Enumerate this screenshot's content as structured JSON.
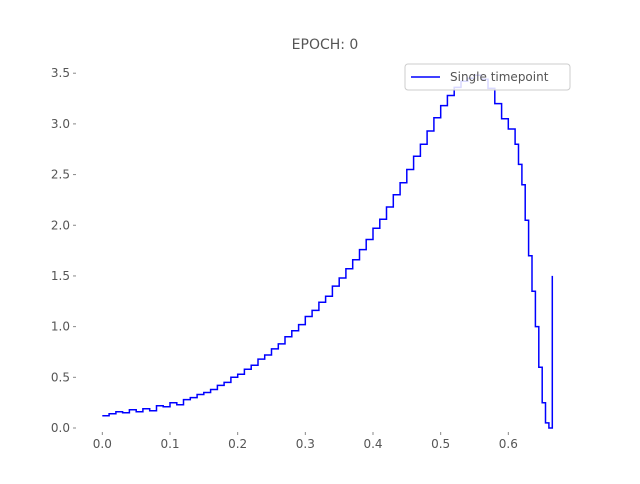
{
  "chart_data": {
    "type": "line",
    "title": "EPOCH: 0",
    "xlabel": "",
    "ylabel": "",
    "xlim": [
      -0.033,
      0.7
    ],
    "ylim": [
      0.0,
      3.65
    ],
    "x_ticks": [
      "0.0",
      "0.1",
      "0.2",
      "0.3",
      "0.4",
      "0.5",
      "0.6"
    ],
    "y_ticks": [
      "0.0",
      "0.5",
      "1.0",
      "1.5",
      "2.0",
      "2.5",
      "3.0",
      "3.5"
    ],
    "grid": false,
    "legend_position": "top-right",
    "series": [
      {
        "name": "Single timepoint",
        "color": "#0000ff",
        "step": true,
        "x": [
          0.0,
          0.01,
          0.02,
          0.03,
          0.04,
          0.05,
          0.06,
          0.07,
          0.08,
          0.09,
          0.1,
          0.11,
          0.12,
          0.13,
          0.14,
          0.15,
          0.16,
          0.17,
          0.18,
          0.19,
          0.2,
          0.21,
          0.22,
          0.23,
          0.24,
          0.25,
          0.26,
          0.27,
          0.28,
          0.29,
          0.3,
          0.31,
          0.32,
          0.33,
          0.34,
          0.35,
          0.36,
          0.37,
          0.38,
          0.39,
          0.4,
          0.41,
          0.42,
          0.43,
          0.44,
          0.45,
          0.46,
          0.47,
          0.48,
          0.49,
          0.5,
          0.51,
          0.52,
          0.53,
          0.54,
          0.55,
          0.56,
          0.57,
          0.58,
          0.59,
          0.6,
          0.61,
          0.615,
          0.62,
          0.625,
          0.63,
          0.635,
          0.64,
          0.645,
          0.65,
          0.655,
          0.66,
          0.665
        ],
        "y": [
          0.12,
          0.14,
          0.16,
          0.15,
          0.18,
          0.16,
          0.19,
          0.17,
          0.22,
          0.21,
          0.25,
          0.23,
          0.28,
          0.3,
          0.33,
          0.35,
          0.38,
          0.42,
          0.45,
          0.5,
          0.53,
          0.58,
          0.62,
          0.68,
          0.72,
          0.78,
          0.83,
          0.9,
          0.96,
          1.02,
          1.1,
          1.16,
          1.24,
          1.3,
          1.4,
          1.48,
          1.57,
          1.66,
          1.76,
          1.86,
          1.97,
          2.06,
          2.18,
          2.3,
          2.42,
          2.55,
          2.68,
          2.8,
          2.93,
          3.06,
          3.18,
          3.28,
          3.36,
          3.42,
          3.45,
          3.48,
          3.44,
          3.35,
          3.2,
          3.05,
          2.95,
          2.8,
          2.6,
          2.4,
          2.05,
          1.7,
          1.35,
          1.0,
          0.6,
          0.25,
          0.05,
          0.0,
          1.5
        ]
      }
    ]
  }
}
